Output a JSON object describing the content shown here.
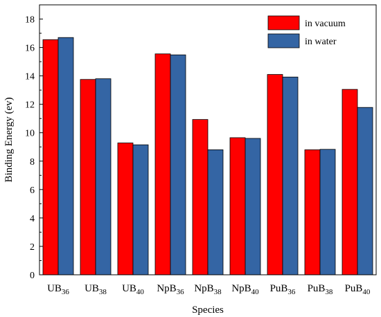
{
  "chart_data": {
    "type": "bar",
    "categories": [
      {
        "base": "UB",
        "sub": "36"
      },
      {
        "base": "UB",
        "sub": "38"
      },
      {
        "base": "UB",
        "sub": "40"
      },
      {
        "base": "NpB",
        "sub": "36"
      },
      {
        "base": "NpB",
        "sub": "38"
      },
      {
        "base": "NpB",
        "sub": "40"
      },
      {
        "base": "PuB",
        "sub": "36"
      },
      {
        "base": "PuB",
        "sub": "38"
      },
      {
        "base": "PuB",
        "sub": "40"
      }
    ],
    "series": [
      {
        "name": "in vacuum",
        "color": "#ff0000",
        "values": [
          16.55,
          13.75,
          9.28,
          15.55,
          10.93,
          9.65,
          14.1,
          8.8,
          13.05
        ]
      },
      {
        "name": "in water",
        "color": "#3465a4",
        "values": [
          16.7,
          13.8,
          9.15,
          15.48,
          8.8,
          9.6,
          13.92,
          8.83,
          11.78
        ]
      }
    ],
    "xlabel": "Species",
    "ylabel": "Binding Energy (ev)",
    "ylim": [
      0,
      19
    ],
    "yticks": [
      0,
      2,
      4,
      6,
      8,
      10,
      12,
      14,
      16,
      18
    ],
    "grid": false,
    "legend_position": "top-right"
  }
}
